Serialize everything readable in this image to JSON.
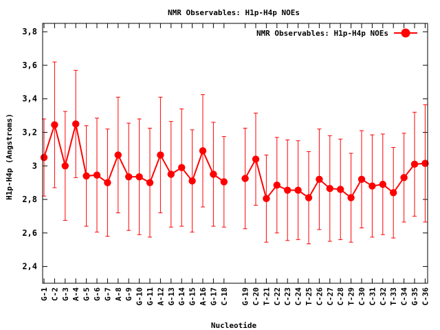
{
  "chart_data": {
    "type": "line",
    "title": "NMR Observables: H1p-H4p NOEs",
    "xlabel": "Nucleotide",
    "ylabel": "H1p-H4p (Angstroms)",
    "ylim": [
      2.3,
      3.85
    ],
    "yticks": [
      "2,4",
      "2,6",
      "2,8",
      "3",
      "3,2",
      "3,4",
      "3,6",
      "3,8"
    ],
    "ytick_values": [
      2.4,
      2.6,
      2.8,
      3.0,
      3.2,
      3.4,
      3.6,
      3.8
    ],
    "grid": false,
    "legend_position": "top-right",
    "series": [
      {
        "name": "NMR Observables: H1p-H4p NOEs",
        "color": "#ff0000",
        "segments": [
          {
            "categories": [
              "G-1",
              "C-2",
              "G-3",
              "A-4",
              "G-5",
              "G-6",
              "G-7",
              "A-8",
              "G-9",
              "G-10",
              "G-11",
              "A-12",
              "G-13",
              "G-14",
              "G-15",
              "A-16",
              "G-17",
              "C-18"
            ],
            "values": [
              3.05,
              3.245,
              3.0,
              3.25,
              2.94,
              2.945,
              2.9,
              3.065,
              2.935,
              2.935,
              2.9,
              3.065,
              2.95,
              2.99,
              2.91,
              3.09,
              2.95,
              2.905
            ],
            "err": [
              0.23,
              0.375,
              0.325,
              0.32,
              0.3,
              0.34,
              0.32,
              0.345,
              0.32,
              0.345,
              0.325,
              0.345,
              0.315,
              0.35,
              0.305,
              0.335,
              0.31,
              0.27
            ]
          },
          {
            "categories": [
              "G-19",
              "C-20",
              "T-21",
              "C-22",
              "C-23",
              "C-24",
              "T-25",
              "C-26",
              "C-27",
              "C-28",
              "T-29",
              "C-30",
              "C-31",
              "C-32",
              "T-33",
              "C-34",
              "G-35",
              "C-36"
            ],
            "values": [
              2.925,
              3.04,
              2.805,
              2.885,
              2.855,
              2.855,
              2.81,
              2.92,
              2.865,
              2.86,
              2.81,
              2.92,
              2.88,
              2.89,
              2.84,
              2.93,
              3.01,
              3.015
            ],
            "err": [
              0.3,
              0.275,
              0.26,
              0.285,
              0.3,
              0.295,
              0.275,
              0.3,
              0.315,
              0.3,
              0.265,
              0.29,
              0.305,
              0.3,
              0.27,
              0.265,
              0.31,
              0.35
            ]
          }
        ]
      }
    ]
  }
}
